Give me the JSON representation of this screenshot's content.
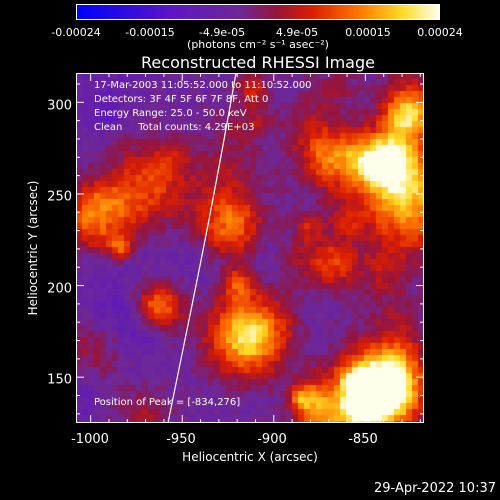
{
  "colorbar": {
    "ticks": [
      "-0.00024",
      "-0.00015",
      "-4.9e-05",
      "4.9e-05",
      "0.00015",
      "0.00024"
    ],
    "units": "(photons cm⁻² s⁻¹ asec⁻²)",
    "range": [
      -0.00024,
      0.00024
    ]
  },
  "title": "Reconstructed RHESSI Image",
  "info": {
    "time": "17-Mar-2003 11:05:52.000 to 11:10:52.000",
    "detectors": "Detectors: 3F 4F 5F 6F 7F 8F, Att 0",
    "energy": "Energy Range: 25.0 - 50.0 keV",
    "clean": "Clean     Total counts: 4.29E+03",
    "peak": "Position of Peak = [-834,276]"
  },
  "axes": {
    "xlabel": "Heliocentric X (arcsec)",
    "ylabel": "Heliocentric Y (arcsec)",
    "xticks": [
      "-1000",
      "-950",
      "-900",
      "-850"
    ],
    "yticks": [
      "300",
      "250",
      "200",
      "150"
    ],
    "xlim": [
      -1008,
      -818
    ],
    "ylim": [
      125,
      316
    ]
  },
  "footer": {
    "timestamp": "29-Apr-2022 10:37"
  },
  "chart_data": {
    "type": "heatmap",
    "title": "Reconstructed RHESSI Image",
    "xlabel": "Heliocentric X (arcsec)",
    "ylabel": "Heliocentric Y (arcsec)",
    "xlim": [
      -1008,
      -818
    ],
    "ylim": [
      125,
      316
    ],
    "colormap": "blue-purple-red-yellow-white",
    "peak": [
      -834,
      276
    ]
  }
}
